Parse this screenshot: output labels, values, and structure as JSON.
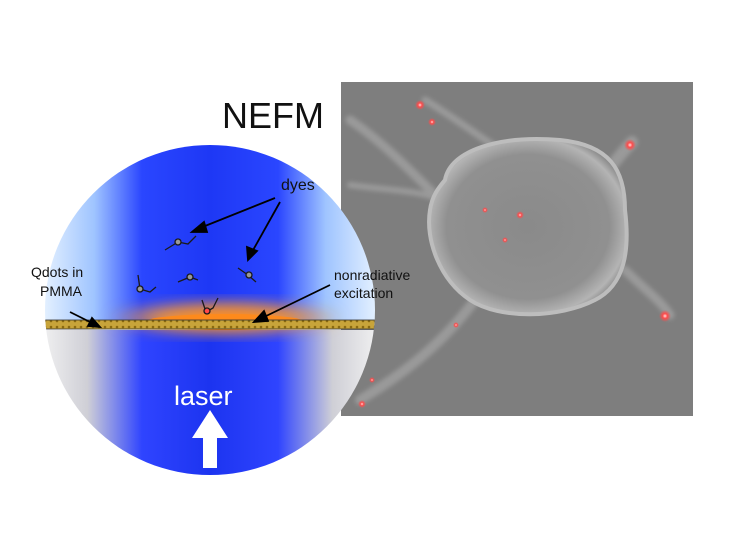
{
  "title": "NEFM",
  "labels": {
    "dyes": "dyes",
    "qdots_line1": "Qdots in",
    "qdots_line2": "PMMA",
    "nonradiative_line1": "nonradiative",
    "nonradiative_line2": "excitation",
    "laser": "laser"
  },
  "colors": {
    "blue": "#1f3bff",
    "deep_blue": "#1a2ee0",
    "light_blue": "#d8ecff",
    "orange": "#ff8a1a",
    "qdot_layer": "#c8a43a",
    "glass_gray": "#d6d6d6",
    "image_gray": "#7f7f7f",
    "fluor_red": "#ff4a4a"
  },
  "icons": {
    "laser_arrow": "up-arrow-icon"
  }
}
